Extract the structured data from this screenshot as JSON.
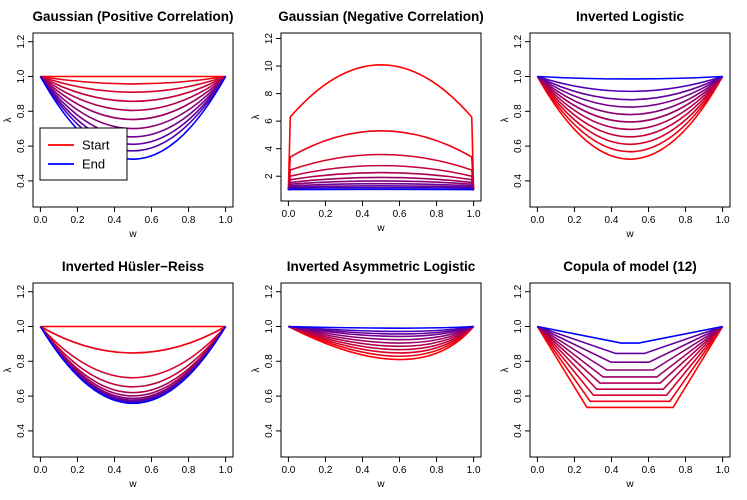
{
  "figure": {
    "colors": {
      "start": "#FF0000",
      "end": "#0000FF",
      "axis": "#000000"
    }
  },
  "chart_data": [
    {
      "type": "line",
      "title": "Gaussian (Positive Correlation)",
      "xlabel": "w",
      "ylabel": "λ",
      "xlim": [
        0,
        1
      ],
      "ylim": [
        0.25,
        1.25
      ],
      "xticks": [
        "0.0",
        "0.2",
        "0.4",
        "0.6",
        "0.8",
        "1.0"
      ],
      "yticks": [
        "0.4",
        "0.6",
        "0.8",
        "1.0",
        "1.2"
      ],
      "legend": {
        "position": "left",
        "entries": [
          {
            "label": "Start",
            "color": "#FF0000"
          },
          {
            "label": "End",
            "color": "#0000FF"
          }
        ]
      },
      "x": [
        0,
        0.5,
        1
      ],
      "series": [
        {
          "color": "#FF0000",
          "values": [
            1,
            1,
            1
          ]
        },
        {
          "color": "#EB0014",
          "values": [
            1,
            0.955,
            1
          ]
        },
        {
          "color": "#D70028",
          "values": [
            1,
            0.905,
            1
          ]
        },
        {
          "color": "#C3003C",
          "values": [
            1,
            0.85,
            1
          ]
        },
        {
          "color": "#AF0050",
          "values": [
            1,
            0.795,
            1
          ]
        },
        {
          "color": "#9C0063",
          "values": [
            1,
            0.74,
            1
          ]
        },
        {
          "color": "#880077",
          "values": [
            1,
            0.685,
            1
          ]
        },
        {
          "color": "#74008B",
          "values": [
            1,
            0.635,
            1
          ]
        },
        {
          "color": "#60009F",
          "values": [
            1,
            0.59,
            1
          ]
        },
        {
          "color": "#4C00B3",
          "values": [
            1,
            0.55,
            1
          ]
        },
        {
          "color": "#0000FF",
          "values": [
            1,
            0.5,
            1
          ]
        }
      ]
    },
    {
      "type": "line",
      "title": "Gaussian (Negative Correlation)",
      "xlabel": "w",
      "ylabel": "λ",
      "xlim": [
        0,
        1
      ],
      "ylim": [
        0.2,
        12.4
      ],
      "xticks": [
        "0.0",
        "0.2",
        "0.4",
        "0.6",
        "0.8",
        "1.0"
      ],
      "yticks": [
        "2",
        "4",
        "6",
        "8",
        "10",
        "12"
      ],
      "x": [
        0,
        0.01,
        0.5,
        0.99,
        1
      ],
      "series": [
        {
          "color": "#FF0000",
          "values": [
            1,
            6.3,
            10,
            6.3,
            1
          ]
        },
        {
          "color": "#EB0014",
          "values": [
            1,
            3.4,
            5.25,
            3.4,
            1
          ]
        },
        {
          "color": "#D70028",
          "values": [
            1,
            2.45,
            3.55,
            2.45,
            1
          ]
        },
        {
          "color": "#C3003C",
          "values": [
            1,
            2.0,
            2.75,
            2.0,
            1
          ]
        },
        {
          "color": "#AF0050",
          "values": [
            1,
            1.75,
            2.25,
            1.75,
            1
          ]
        },
        {
          "color": "#9C0063",
          "values": [
            1,
            1.55,
            1.9,
            1.55,
            1
          ]
        },
        {
          "color": "#880077",
          "values": [
            1,
            1.42,
            1.65,
            1.42,
            1
          ]
        },
        {
          "color": "#74008B",
          "values": [
            1,
            1.3,
            1.45,
            1.3,
            1
          ]
        },
        {
          "color": "#60009F",
          "values": [
            1,
            1.2,
            1.3,
            1.2,
            1
          ]
        },
        {
          "color": "#4C00B3",
          "values": [
            1,
            1.12,
            1.17,
            1.12,
            1
          ]
        },
        {
          "color": "#0000FF",
          "values": [
            1,
            1.03,
            1.05,
            1.03,
            1
          ]
        }
      ]
    },
    {
      "type": "line",
      "title": "Inverted Logistic",
      "xlabel": "w",
      "ylabel": "λ",
      "xlim": [
        0,
        1
      ],
      "ylim": [
        0.25,
        1.25
      ],
      "xticks": [
        "0.0",
        "0.2",
        "0.4",
        "0.6",
        "0.8",
        "1.0"
      ],
      "yticks": [
        "0.4",
        "0.6",
        "0.8",
        "1.0",
        "1.2"
      ],
      "x": [
        0,
        0.5,
        1
      ],
      "series": [
        {
          "color": "#FF0000",
          "values": [
            1,
            0.5,
            1
          ]
        },
        {
          "color": "#EB0014",
          "values": [
            1,
            0.545,
            1
          ]
        },
        {
          "color": "#D70028",
          "values": [
            1,
            0.59,
            1
          ]
        },
        {
          "color": "#C3003C",
          "values": [
            1,
            0.635,
            1
          ]
        },
        {
          "color": "#AF0050",
          "values": [
            1,
            0.68,
            1
          ]
        },
        {
          "color": "#9C0063",
          "values": [
            1,
            0.725,
            1
          ]
        },
        {
          "color": "#880077",
          "values": [
            1,
            0.77,
            1
          ]
        },
        {
          "color": "#74008B",
          "values": [
            1,
            0.815,
            1
          ]
        },
        {
          "color": "#60009F",
          "values": [
            1,
            0.86,
            1
          ]
        },
        {
          "color": "#4C00B3",
          "values": [
            1,
            0.91,
            1
          ]
        },
        {
          "color": "#0000FF",
          "values": [
            1,
            0.985,
            1
          ]
        }
      ]
    },
    {
      "type": "line",
      "title": "Inverted Hüsler−Reiss",
      "xlabel": "w",
      "ylabel": "λ",
      "xlim": [
        0,
        1
      ],
      "ylim": [
        0.25,
        1.25
      ],
      "xticks": [
        "0.0",
        "0.2",
        "0.4",
        "0.6",
        "0.8",
        "1.0"
      ],
      "yticks": [
        "0.4",
        "0.6",
        "0.8",
        "1.0",
        "1.2"
      ],
      "x": [
        0,
        0.5,
        1
      ],
      "series": [
        {
          "color": "#FF0000",
          "values": [
            1,
            1,
            1
          ]
        },
        {
          "color": "#EB0014",
          "values": [
            1,
            0.84,
            1
          ]
        },
        {
          "color": "#D70028",
          "values": [
            1,
            0.69,
            1
          ]
        },
        {
          "color": "#C3003C",
          "values": [
            1,
            0.635,
            1
          ]
        },
        {
          "color": "#AF0050",
          "values": [
            1,
            0.6,
            1
          ]
        },
        {
          "color": "#9C0063",
          "values": [
            1,
            0.58,
            1
          ]
        },
        {
          "color": "#880077",
          "values": [
            1,
            0.565,
            1
          ]
        },
        {
          "color": "#74008B",
          "values": [
            1,
            0.555,
            1
          ]
        },
        {
          "color": "#60009F",
          "values": [
            1,
            0.548,
            1
          ]
        },
        {
          "color": "#4C00B3",
          "values": [
            1,
            0.542,
            1
          ]
        },
        {
          "color": "#0000FF",
          "values": [
            1,
            0.535,
            1
          ]
        }
      ]
    },
    {
      "type": "line",
      "title": "Inverted Asymmetric Logistic",
      "xlabel": "w",
      "ylabel": "λ",
      "xlim": [
        0,
        1
      ],
      "ylim": [
        0.25,
        1.25
      ],
      "xticks": [
        "0.0",
        "0.2",
        "0.4",
        "0.6",
        "0.8",
        "1.0"
      ],
      "yticks": [
        "0.4",
        "0.6",
        "0.8",
        "1.0",
        "1.2"
      ],
      "x": [
        0,
        0.7,
        1
      ],
      "series": [
        {
          "color": "#FF0000",
          "values": [
            1,
            0.8,
            1
          ]
        },
        {
          "color": "#EB0014",
          "values": [
            1,
            0.82,
            1
          ]
        },
        {
          "color": "#D70028",
          "values": [
            1,
            0.84,
            1
          ]
        },
        {
          "color": "#C3003C",
          "values": [
            1,
            0.86,
            1
          ]
        },
        {
          "color": "#AF0050",
          "values": [
            1,
            0.88,
            1
          ]
        },
        {
          "color": "#9C0063",
          "values": [
            1,
            0.9,
            1
          ]
        },
        {
          "color": "#880077",
          "values": [
            1,
            0.92,
            1
          ]
        },
        {
          "color": "#74008B",
          "values": [
            1,
            0.94,
            1
          ]
        },
        {
          "color": "#60009F",
          "values": [
            1,
            0.955,
            1
          ]
        },
        {
          "color": "#4C00B3",
          "values": [
            1,
            0.97,
            1
          ]
        },
        {
          "color": "#0000FF",
          "values": [
            1,
            0.99,
            1
          ]
        }
      ]
    },
    {
      "type": "line",
      "title": "Copula of model (12)",
      "xlabel": "w",
      "ylabel": "λ",
      "xlim": [
        0,
        1
      ],
      "ylim": [
        0.25,
        1.25
      ],
      "xticks": [
        "0.0",
        "0.2",
        "0.4",
        "0.6",
        "0.8",
        "1.0"
      ],
      "yticks": [
        "0.4",
        "0.6",
        "0.8",
        "1.0",
        "1.2"
      ],
      "x": [
        0,
        0.5,
        1
      ],
      "series": [
        {
          "color": "#FF0000",
          "values": [
            1,
            0.535,
            1
          ]
        },
        {
          "color": "#EB0014",
          "values": [
            1,
            0.57,
            1
          ]
        },
        {
          "color": "#D70028",
          "values": [
            1,
            0.605,
            1
          ]
        },
        {
          "color": "#C3003C",
          "values": [
            1,
            0.64,
            1
          ]
        },
        {
          "color": "#AF0050",
          "values": [
            1,
            0.675,
            1
          ]
        },
        {
          "color": "#9C0063",
          "values": [
            1,
            0.71,
            1
          ]
        },
        {
          "color": "#880077",
          "values": [
            1,
            0.75,
            1
          ]
        },
        {
          "color": "#74008B",
          "values": [
            1,
            0.795,
            1
          ]
        },
        {
          "color": "#60009F",
          "values": [
            1,
            0.845,
            1
          ]
        },
        {
          "color": "#0000FF",
          "values": [
            1,
            0.905,
            1
          ]
        }
      ]
    }
  ]
}
